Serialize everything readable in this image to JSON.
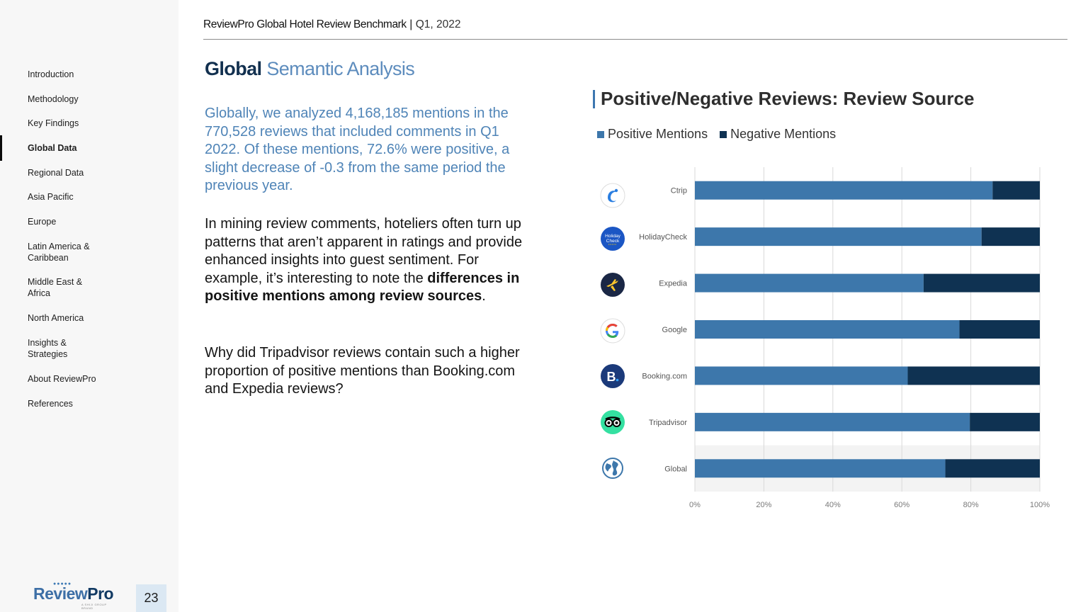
{
  "header": {
    "title": "ReviewPro Global Hotel Review Benchmark",
    "separator": "|",
    "date": "Q1, 2022"
  },
  "sidebar": {
    "items": [
      {
        "label": "Introduction"
      },
      {
        "label": "Methodology"
      },
      {
        "label": "Key Findings"
      },
      {
        "label": "Global Data",
        "active": true
      },
      {
        "label": "Regional Data"
      },
      {
        "label": "Asia Pacific"
      },
      {
        "label": "Europe"
      },
      {
        "label": "Latin America & Caribbean"
      },
      {
        "label": "Middle East & Africa"
      },
      {
        "label": "North America"
      },
      {
        "label": "Insights & Strategies"
      },
      {
        "label": "About ReviewPro"
      },
      {
        "label": "References"
      }
    ],
    "brand": {
      "part1": "Review",
      "part2": "Pro",
      "tagline": "A SHIJI GROUP BRAND"
    },
    "page_number": "23"
  },
  "section": {
    "title_bold": "Global",
    "title_light": "Semantic Analysis"
  },
  "body": {
    "intro": "Globally, we analyzed 4,168,185 mentions in the 770,528 reviews that included comments in Q1 2022. Of these mentions, 72.6% were positive, a slight decrease of -0.3 from the same period the previous year.",
    "p2_start": "In mining review comments, hoteliers often turn up patterns that aren’t apparent in ratings and provide enhanced insights into guest sentiment. For example, it’s interesting to note the ",
    "p2_bold": "differences in positive mentions among review sources",
    "p2_end": ".",
    "p3": "Why did Tripadvisor reviews contain such a higher proportion of positive mentions than Booking.com and Expedia reviews?"
  },
  "colors": {
    "positive": "#3d77ab",
    "negative": "#0f3252",
    "accent": "#4f84b7"
  },
  "chart_data": {
    "type": "bar",
    "orientation": "horizontal",
    "stacked": true,
    "title": "Positive/Negative Reviews: Review Source",
    "categories": [
      "Ctrip",
      "HolidayCheck",
      "Expedia",
      "Google",
      "Booking.com",
      "Tripadvisor",
      "Global"
    ],
    "icons": [
      "ctrip-icon",
      "holidaycheck-icon",
      "expedia-icon",
      "google-icon",
      "booking-icon",
      "tripadvisor-icon",
      "globe-icon"
    ],
    "holidaycheck_icon_text": [
      "Holiday",
      "Check"
    ],
    "booking_icon_text": "B",
    "series": [
      {
        "name": "Positive Mentions",
        "values": [
          86.3,
          83.1,
          66.3,
          76.7,
          61.7,
          79.7,
          72.6
        ]
      },
      {
        "name": "Negative Mentions",
        "values": [
          13.7,
          16.9,
          33.7,
          23.3,
          38.3,
          20.3,
          27.4
        ]
      }
    ],
    "xlim": [
      0,
      100
    ],
    "xticks": [
      "0%",
      "20%",
      "40%",
      "60%",
      "80%",
      "100%"
    ],
    "grid": true,
    "legend_position": "top-left"
  }
}
